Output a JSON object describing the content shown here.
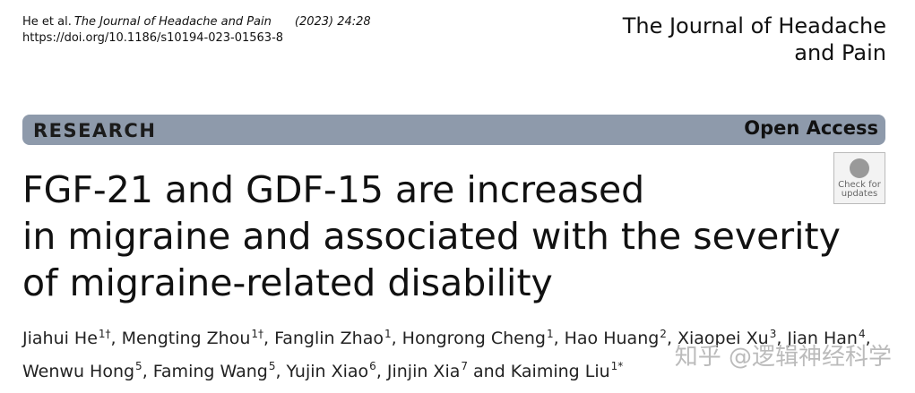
{
  "header": {
    "citation_author": "He et al.",
    "citation_journal": "The Journal of Headache and Pain",
    "citation_issue": "(2023) 24:28",
    "doi": "https://doi.org/10.1186/s10194-023-01563-8",
    "journal_lines": [
      "The Journal of Headache",
      "and Pain"
    ]
  },
  "banner": {
    "label": "RESEARCH",
    "access": "Open Access"
  },
  "badge": {
    "lines": [
      "Check for",
      "updates"
    ]
  },
  "title_lines": [
    "FGF-21 and GDF-15 are increased",
    "in migraine and associated with the severity",
    "of migraine-related disability"
  ],
  "author_lines": [
    [
      {
        "name": "Jiahui He",
        "sup": "1†",
        "after": ","
      },
      {
        "name": "Mengting Zhou",
        "sup": "1†",
        "after": ","
      },
      {
        "name": "Fanglin Zhao",
        "sup": "1",
        "after": ","
      },
      {
        "name": "Hongrong Cheng",
        "sup": "1",
        "after": ","
      },
      {
        "name": "Hao Huang",
        "sup": "2",
        "after": ","
      },
      {
        "name": "Xiaopei Xu",
        "sup": "3",
        "after": ","
      },
      {
        "name": "Jian Han",
        "sup": "4",
        "after": ","
      }
    ],
    [
      {
        "name": "Wenwu Hong",
        "sup": "5",
        "after": ","
      },
      {
        "name": "Faming Wang",
        "sup": "5",
        "after": ","
      },
      {
        "name": "Yujin Xiao",
        "sup": "6",
        "after": ","
      },
      {
        "name": "Jinjin Xia",
        "sup": "7",
        "after": "and"
      },
      {
        "name": "Kaiming Liu",
        "sup": "1*"
      }
    ]
  ],
  "watermark": "知乎 @逻辑神经科学"
}
